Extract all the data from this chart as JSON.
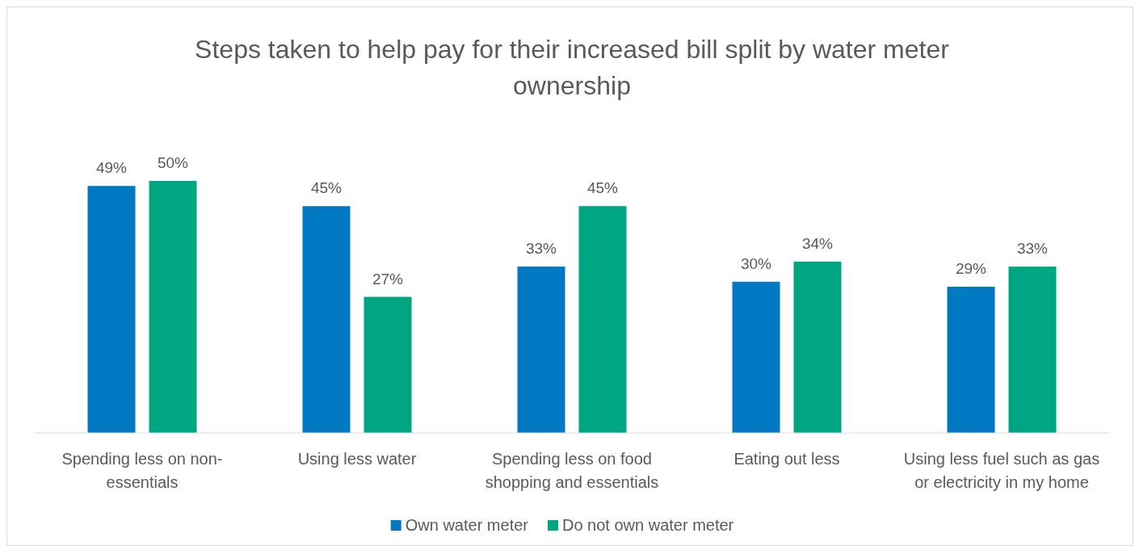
{
  "chart_data": {
    "type": "bar",
    "title": "Steps taken to help pay for their increased bill split by water meter ownership",
    "categories": [
      "Spending less on non-essentials",
      "Using less water",
      "Spending less on food shopping and essentials",
      "Eating out less",
      "Using less fuel such as gas or electricity in my home"
    ],
    "series": [
      {
        "name": "Own water meter",
        "color": "#0079c2",
        "values": [
          49,
          45,
          33,
          30,
          29
        ],
        "value_labels": [
          "49%",
          "45%",
          "33%",
          "30%",
          "29%"
        ]
      },
      {
        "name": "Do not own water meter",
        "color": "#00a582",
        "values": [
          50,
          27,
          45,
          34,
          33
        ],
        "value_labels": [
          "50%",
          "27%",
          "45%",
          "34%",
          "33%"
        ]
      }
    ],
    "legend": "bottom",
    "grid": false
  }
}
